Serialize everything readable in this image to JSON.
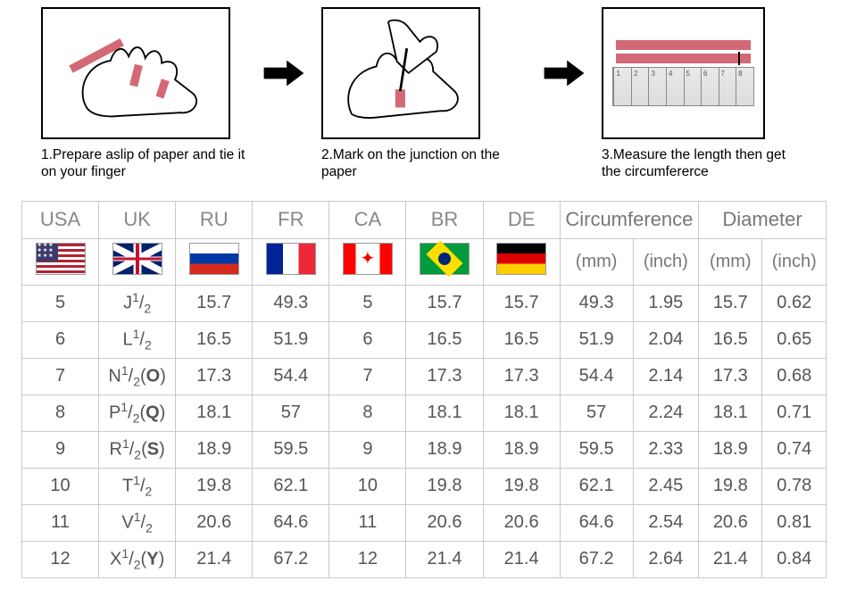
{
  "steps": [
    {
      "caption": "1.Prepare aslip of paper and tie it on your finger"
    },
    {
      "caption": "2.Mark on the junction on the paper"
    },
    {
      "caption": "3.Measure the length then get the circumfererce"
    }
  ],
  "colors": {
    "paper_strip": "#d36876",
    "border": "#c9c9c9",
    "header_text": "#888",
    "cell_text": "#555"
  },
  "table": {
    "country_headers": [
      "USA",
      "UK",
      "RU",
      "FR",
      "CA",
      "BR",
      "DE"
    ],
    "group_headers": [
      "Circumference",
      "Diameter"
    ],
    "sub_headers": [
      "(mm)",
      "(inch)",
      "(mm)",
      "(inch)"
    ],
    "flags": [
      "usa",
      "uk",
      "ru",
      "fr",
      "ca",
      "br",
      "de"
    ],
    "rows": [
      {
        "usa": "5",
        "uk": "J¹/₂",
        "ru": "15.7",
        "fr": "49.3",
        "ca": "5",
        "br": "15.7",
        "de": "15.7",
        "circ_mm": "49.3",
        "circ_in": "1.95",
        "dia_mm": "15.7",
        "dia_in": "0.62"
      },
      {
        "usa": "6",
        "uk": "L¹/₂",
        "ru": "16.5",
        "fr": "51.9",
        "ca": "6",
        "br": "16.5",
        "de": "16.5",
        "circ_mm": "51.9",
        "circ_in": "2.04",
        "dia_mm": "16.5",
        "dia_in": "0.65"
      },
      {
        "usa": "7",
        "uk": "N¹/₂(O)",
        "ru": "17.3",
        "fr": "54.4",
        "ca": "7",
        "br": "17.3",
        "de": "17.3",
        "circ_mm": "54.4",
        "circ_in": "2.14",
        "dia_mm": "17.3",
        "dia_in": "0.68"
      },
      {
        "usa": "8",
        "uk": "P¹/₂(Q)",
        "ru": "18.1",
        "fr": "57",
        "ca": "8",
        "br": "18.1",
        "de": "18.1",
        "circ_mm": "57",
        "circ_in": "2.24",
        "dia_mm": "18.1",
        "dia_in": "0.71"
      },
      {
        "usa": "9",
        "uk": "R¹/₂(S)",
        "ru": "18.9",
        "fr": "59.5",
        "ca": "9",
        "br": "18.9",
        "de": "18.9",
        "circ_mm": "59.5",
        "circ_in": "2.33",
        "dia_mm": "18.9",
        "dia_in": "0.74"
      },
      {
        "usa": "10",
        "uk": "T¹/₂",
        "ru": "19.8",
        "fr": "62.1",
        "ca": "10",
        "br": "19.8",
        "de": "19.8",
        "circ_mm": "62.1",
        "circ_in": "2.45",
        "dia_mm": "19.8",
        "dia_in": "0.78"
      },
      {
        "usa": "11",
        "uk": "V¹/₂",
        "ru": "20.6",
        "fr": "64.6",
        "ca": "11",
        "br": "20.6",
        "de": "20.6",
        "circ_mm": "64.6",
        "circ_in": "2.54",
        "dia_mm": "20.6",
        "dia_in": "0.81"
      },
      {
        "usa": "12",
        "uk": "X¹/₂(Y)",
        "ru": "21.4",
        "fr": "67.2",
        "ca": "12",
        "br": "21.4",
        "de": "21.4",
        "circ_mm": "67.2",
        "circ_in": "2.64",
        "dia_mm": "21.4",
        "dia_in": "0.84"
      }
    ]
  }
}
